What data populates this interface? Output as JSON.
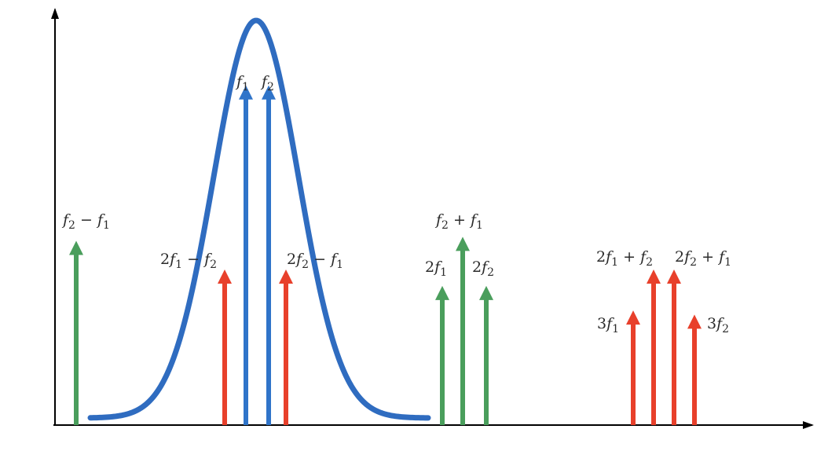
{
  "colors": {
    "axis": "#000000",
    "curve": "#2f6cc0",
    "blue_arrow": "#2f74c9",
    "green_arrow": "#4a9e5c",
    "red_arrow": "#e8402b",
    "text": "#2b2b2b"
  },
  "curve": {
    "shape": "gaussian",
    "label": ""
  },
  "arrows": [
    {
      "id": "f2-minus-f1",
      "color": "green",
      "level": 0.45,
      "label": [
        [
          "f",
          "it"
        ],
        [
          "2",
          "sub"
        ],
        [
          " − ",
          ""
        ],
        [
          "f",
          "it"
        ],
        [
          "1",
          "sub"
        ]
      ]
    },
    {
      "id": "2f1-minus-f2",
      "color": "red",
      "level": 0.38,
      "label": [
        [
          "2",
          ""
        ],
        [
          "f",
          "it"
        ],
        [
          "1",
          "sub"
        ],
        [
          " − ",
          ""
        ],
        [
          "f",
          "it"
        ],
        [
          "2",
          "sub"
        ]
      ]
    },
    {
      "id": "f1",
      "color": "blue",
      "level": 0.83,
      "label": [
        [
          "f",
          "it"
        ],
        [
          "1",
          "sub"
        ]
      ]
    },
    {
      "id": "f2",
      "color": "blue",
      "level": 0.83,
      "label": [
        [
          "f",
          "it"
        ],
        [
          "2",
          "sub"
        ]
      ]
    },
    {
      "id": "2f2-minus-f1",
      "color": "red",
      "level": 0.38,
      "label": [
        [
          "2",
          ""
        ],
        [
          "f",
          "it"
        ],
        [
          "2",
          "sub"
        ],
        [
          " − ",
          ""
        ],
        [
          "f",
          "it"
        ],
        [
          "1",
          "sub"
        ]
      ]
    },
    {
      "id": "2f1",
      "color": "green",
      "level": 0.34,
      "label": [
        [
          "2",
          ""
        ],
        [
          "f",
          "it"
        ],
        [
          "1",
          "sub"
        ]
      ]
    },
    {
      "id": "f2-plus-f1",
      "color": "green",
      "level": 0.46,
      "label": [
        [
          "f",
          "it"
        ],
        [
          "2",
          "sub"
        ],
        [
          " + ",
          ""
        ],
        [
          "f",
          "it"
        ],
        [
          "1",
          "sub"
        ]
      ]
    },
    {
      "id": "2f2",
      "color": "green",
      "level": 0.34,
      "label": [
        [
          "2",
          ""
        ],
        [
          "f",
          "it"
        ],
        [
          "2",
          "sub"
        ]
      ]
    },
    {
      "id": "3f1",
      "color": "red",
      "level": 0.28,
      "label": [
        [
          "3",
          ""
        ],
        [
          "f",
          "it"
        ],
        [
          "1",
          "sub"
        ]
      ]
    },
    {
      "id": "2f1-plus-f2",
      "color": "red",
      "level": 0.38,
      "label": [
        [
          "2",
          ""
        ],
        [
          "f",
          "it"
        ],
        [
          "1",
          "sub"
        ],
        [
          " + ",
          ""
        ],
        [
          "f",
          "it"
        ],
        [
          "2",
          "sub"
        ]
      ]
    },
    {
      "id": "2f2-plus-f1",
      "color": "red",
      "level": 0.38,
      "label": [
        [
          "2",
          ""
        ],
        [
          "f",
          "it"
        ],
        [
          "2",
          "sub"
        ],
        [
          " + ",
          ""
        ],
        [
          "f",
          "it"
        ],
        [
          "1",
          "sub"
        ]
      ]
    },
    {
      "id": "3f2",
      "color": "red",
      "level": 0.27,
      "label": [
        [
          "3",
          ""
        ],
        [
          "f",
          "it"
        ],
        [
          "2",
          "sub"
        ]
      ]
    }
  ]
}
